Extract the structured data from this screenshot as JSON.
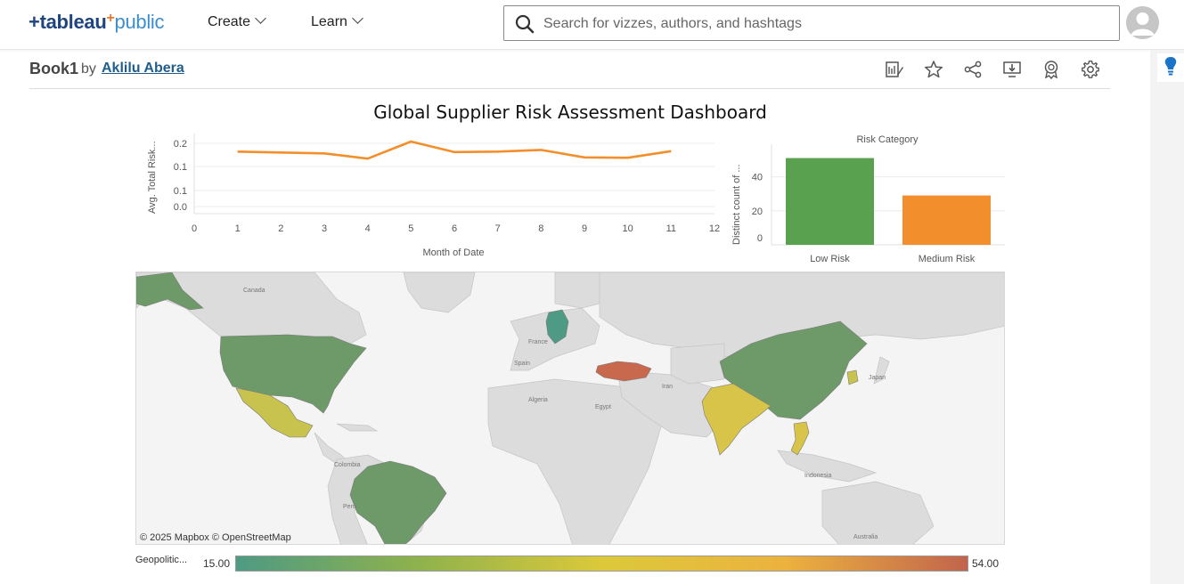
{
  "nav": {
    "logo_word": "tableau",
    "logo_plus": "+",
    "logo_public": "public",
    "create_label": "Create",
    "learn_label": "Learn",
    "search_placeholder": "Search for vizzes, authors, and hashtags"
  },
  "workbook": {
    "title": "Book1",
    "by_label": "by",
    "author": "Aklilu Abera"
  },
  "toolbar_icons": [
    "edit-icon",
    "star-icon",
    "share-icon",
    "download-icon",
    "badge-icon",
    "gear-icon"
  ],
  "dashboard": {
    "title": "Global Supplier Risk Assessment Dashboard"
  },
  "chart_data": [
    {
      "type": "line",
      "xlabel": "Month of Date",
      "ylabel": "Avg. Total Risk...",
      "x": [
        1,
        2,
        3,
        4,
        5,
        6,
        7,
        8,
        9,
        10,
        11
      ],
      "values": [
        0.191,
        0.189,
        0.187,
        0.175,
        0.214,
        0.19,
        0.191,
        0.195,
        0.178,
        0.177,
        0.192
      ],
      "xlim": [
        0,
        12
      ],
      "x_ticks": [
        "0",
        "1",
        "2",
        "3",
        "4",
        "5",
        "6",
        "7",
        "8",
        "9",
        "10",
        "11",
        "12"
      ],
      "y_ticks": [
        "0.2",
        "0.1",
        "0.1",
        "0.0"
      ],
      "color": "#f28e2b",
      "grid": true
    },
    {
      "type": "bar",
      "title": "Risk Category",
      "ylabel": "Distinct count of ...",
      "categories": [
        "Low Risk",
        "Medium Risk"
      ],
      "values": [
        51,
        29
      ],
      "colors": [
        "#59a14f",
        "#f28e2b"
      ],
      "y_ticks": [
        "40",
        "20",
        "0"
      ],
      "ylim": [
        0,
        56
      ]
    }
  ],
  "map": {
    "attribution": "© 2025 Mapbox  © OpenStreetMap",
    "place_labels": [
      "Canada",
      "France",
      "Spain",
      "Algeria",
      "Egypt",
      "Iran",
      "Japan",
      "Colombia",
      "Perú",
      "Indonesia",
      "Australia"
    ],
    "legend_title": "Geopolitic...",
    "legend_min": "15.00",
    "legend_max": "54.00",
    "gradient_colors": [
      "#4e9a84",
      "#8fb24c",
      "#dcc93a",
      "#ecb23e",
      "#c2644d"
    ]
  }
}
